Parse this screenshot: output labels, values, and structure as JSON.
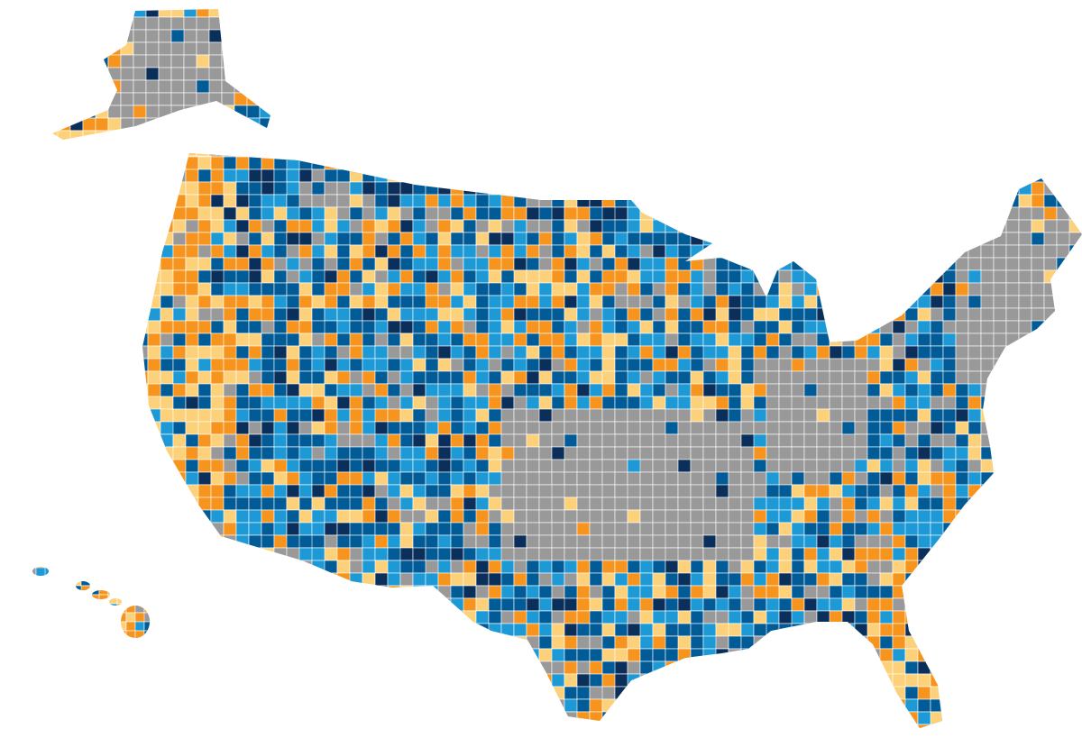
{
  "map": {
    "palette": [
      "#0b2f5b",
      "#005b96",
      "#1d9ad6",
      "#999999",
      "#f7941d",
      "#fdd17a"
    ]
  }
}
